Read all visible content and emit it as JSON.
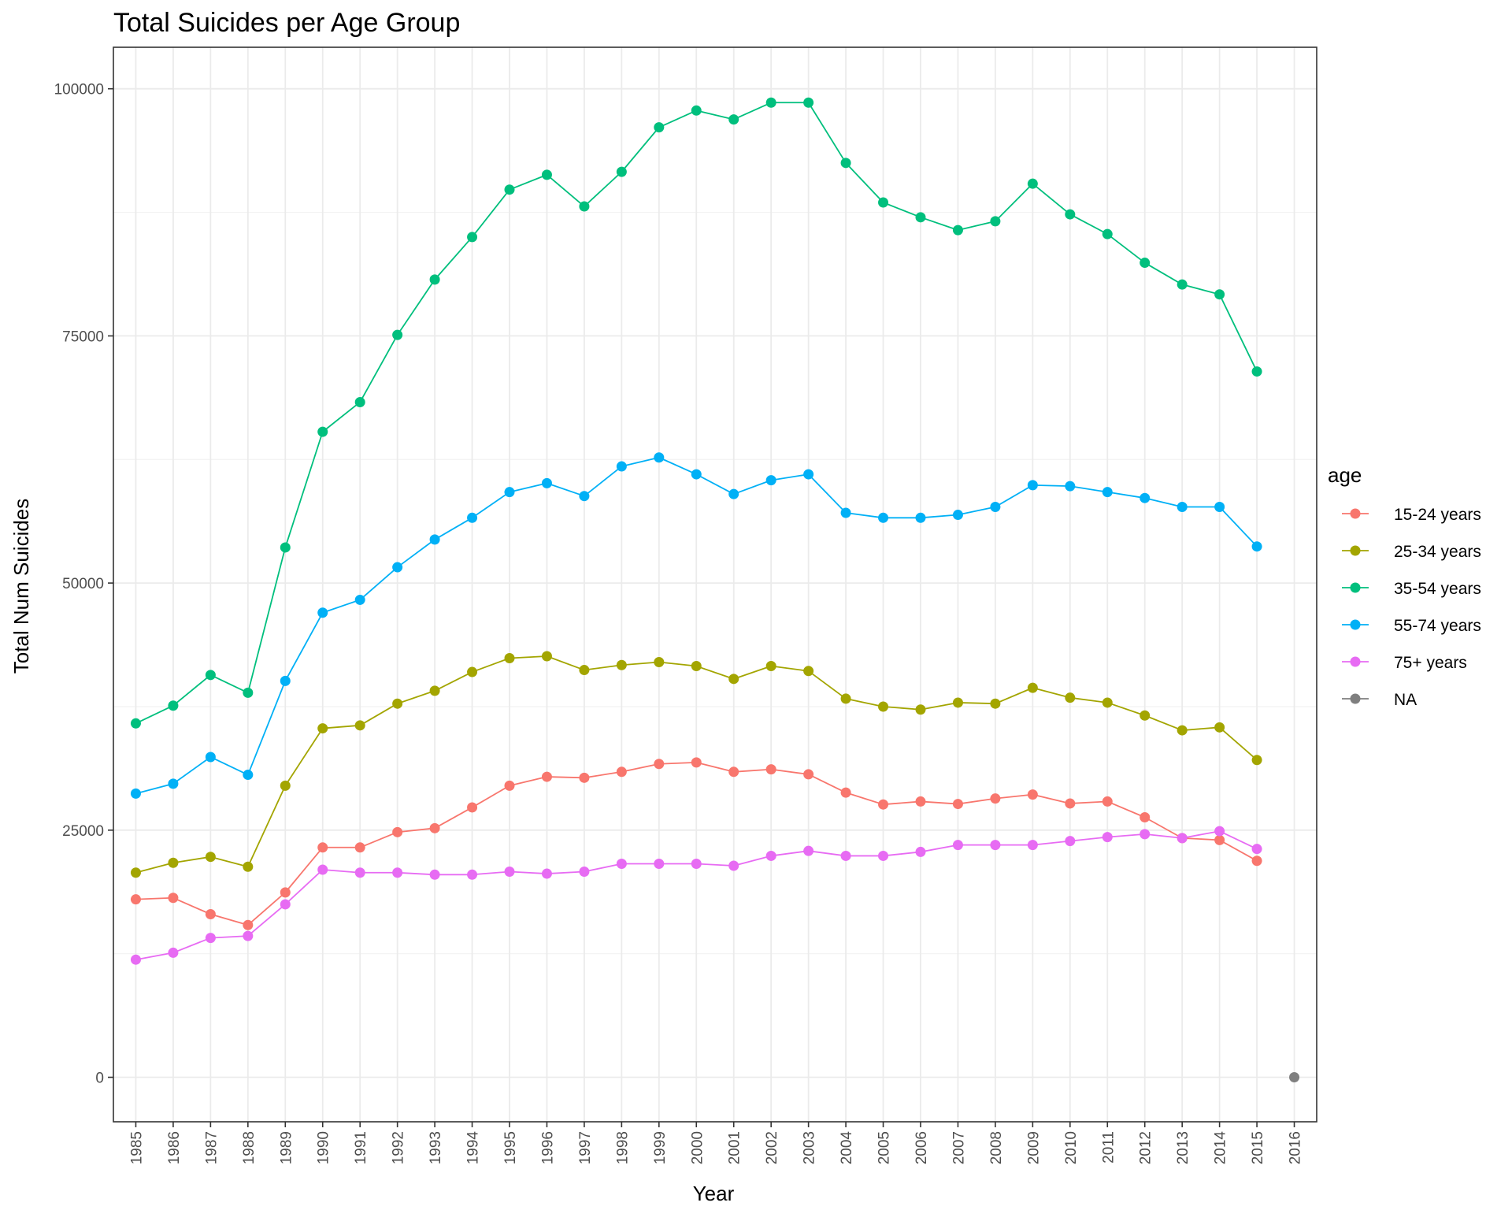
{
  "chart_data": {
    "type": "line",
    "title": "Total Suicides per Age Group",
    "xlabel": "Year",
    "ylabel": "Total Num Suicides",
    "x": [
      "1985",
      "1986",
      "1987",
      "1988",
      "1989",
      "1990",
      "1991",
      "1992",
      "1993",
      "1994",
      "1995",
      "1996",
      "1997",
      "1998",
      "1999",
      "2000",
      "2001",
      "2002",
      "2003",
      "2004",
      "2005",
      "2006",
      "2007",
      "2008",
      "2009",
      "2010",
      "2011",
      "2012",
      "2013",
      "2014",
      "2015",
      "2016"
    ],
    "ylim": [
      -4500,
      104200
    ],
    "yticks": [
      0,
      25000,
      50000,
      75000,
      100000
    ],
    "ytick_labels": [
      "0",
      "25000",
      "50000",
      "75000",
      "100000"
    ],
    "grid": true,
    "legend": {
      "title": "age",
      "position": "right"
    },
    "series": [
      {
        "name": "15-24 years",
        "color": "#F8766D",
        "values": [
          18000,
          18150,
          16500,
          15400,
          18700,
          23250,
          23250,
          24800,
          25200,
          27300,
          29500,
          30400,
          30300,
          30900,
          31700,
          31850,
          30900,
          31150,
          30650,
          28800,
          27600,
          27900,
          27650,
          28200,
          28600,
          27700,
          27900,
          26300,
          24200,
          24000,
          21900,
          null
        ]
      },
      {
        "name": "25-34 years",
        "color": "#A3A500",
        "values": [
          20700,
          21700,
          22300,
          21300,
          29500,
          35300,
          35600,
          37800,
          39100,
          41000,
          42400,
          42600,
          41200,
          41700,
          42000,
          41600,
          40300,
          41600,
          41100,
          38300,
          37500,
          37200,
          37900,
          37800,
          39400,
          38400,
          37900,
          36600,
          35100,
          35400,
          32100,
          null
        ]
      },
      {
        "name": "35-54 years",
        "color": "#00BF7D",
        "values": [
          35800,
          37600,
          40700,
          38900,
          53600,
          65300,
          68300,
          75100,
          80700,
          85000,
          89800,
          91300,
          88100,
          91600,
          96100,
          97800,
          96900,
          98600,
          98600,
          92500,
          88500,
          87000,
          85700,
          86600,
          90400,
          87300,
          85300,
          82400,
          80200,
          79200,
          71400,
          null
        ]
      },
      {
        "name": "55-74 years",
        "color": "#00B0F6",
        "values": [
          28700,
          29700,
          32400,
          30600,
          40100,
          47000,
          48300,
          51600,
          54400,
          56600,
          59200,
          60100,
          58800,
          61800,
          62700,
          61000,
          59000,
          60400,
          61000,
          57100,
          56600,
          56600,
          56900,
          57700,
          59900,
          59800,
          59200,
          58600,
          57700,
          57700,
          53700,
          null
        ]
      },
      {
        "name": "75+ years",
        "color": "#E76BF3",
        "values": [
          11900,
          12600,
          14100,
          14300,
          17500,
          21000,
          20700,
          20700,
          20500,
          20500,
          20800,
          20600,
          20800,
          21600,
          21600,
          21600,
          21400,
          22400,
          22900,
          22400,
          22400,
          22800,
          23500,
          23500,
          23500,
          23900,
          24300,
          24600,
          24200,
          24900,
          23100,
          null
        ]
      },
      {
        "name": "NA",
        "color": "#7F7F7F",
        "values": [
          null,
          null,
          null,
          null,
          null,
          null,
          null,
          null,
          null,
          null,
          null,
          null,
          null,
          null,
          null,
          null,
          null,
          null,
          null,
          null,
          null,
          null,
          null,
          null,
          null,
          null,
          null,
          null,
          null,
          null,
          null,
          0
        ]
      }
    ]
  }
}
